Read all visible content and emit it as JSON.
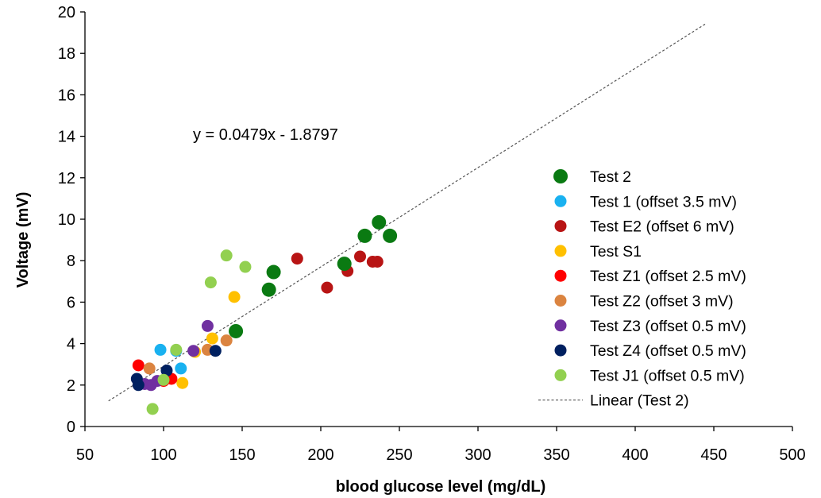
{
  "chart_data": {
    "type": "scatter",
    "xlabel": "blood glucose level (mg/dL)",
    "ylabel": "Voltage (mV)",
    "xlim": [
      50,
      500
    ],
    "ylim": [
      0,
      20
    ],
    "xticks": [
      50,
      100,
      150,
      200,
      250,
      300,
      350,
      400,
      450,
      500
    ],
    "yticks": [
      0,
      2,
      4,
      6,
      8,
      10,
      12,
      14,
      16,
      18,
      20
    ],
    "grid": false,
    "legend_position": "right",
    "annotation": "y = 0.0479x - 1.8797",
    "series": [
      {
        "name": "Test 2",
        "color": "#0a7a12",
        "marker": "large-circle",
        "points": [
          [
            146,
            4.6
          ],
          [
            167,
            6.6
          ],
          [
            170,
            7.45
          ],
          [
            215,
            7.85
          ],
          [
            228,
            9.2
          ],
          [
            237,
            9.85
          ],
          [
            244,
            9.2
          ]
        ]
      },
      {
        "name": "Test 1 (offset 3.5 mV)",
        "color": "#19b1f0",
        "marker": "circle",
        "points": [
          [
            98,
            3.7
          ],
          [
            108,
            3.65
          ],
          [
            111,
            2.8
          ]
        ]
      },
      {
        "name": "Test E2 (offset 6 mV)",
        "color": "#b81414",
        "marker": "circle",
        "points": [
          [
            185,
            8.1
          ],
          [
            204,
            6.7
          ],
          [
            217,
            7.5
          ],
          [
            225,
            8.2
          ],
          [
            233,
            7.95
          ],
          [
            236,
            7.95
          ]
        ]
      },
      {
        "name": "Test S1",
        "color": "#ffc000",
        "marker": "circle",
        "points": [
          [
            112,
            2.1
          ],
          [
            120,
            3.6
          ],
          [
            131,
            4.25
          ],
          [
            145,
            6.25
          ]
        ]
      },
      {
        "name": "Test Z1 (offset 2.5 mV)",
        "color": "#ff0000",
        "marker": "circle",
        "points": [
          [
            84,
            2.95
          ],
          [
            100,
            2.2
          ],
          [
            105,
            2.3
          ]
        ]
      },
      {
        "name": "Test Z2 (offset 3 mV)",
        "color": "#db8440",
        "marker": "circle",
        "points": [
          [
            91,
            2.8
          ],
          [
            128,
            3.7
          ],
          [
            140,
            4.15
          ]
        ]
      },
      {
        "name": "Test Z3 (offset 0.5 mV)",
        "color": "#7030a0",
        "marker": "circle",
        "points": [
          [
            88,
            2.05
          ],
          [
            92,
            2.0
          ],
          [
            96,
            2.2
          ],
          [
            119,
            3.65
          ],
          [
            128,
            4.85
          ]
        ]
      },
      {
        "name": "Test Z4 (offset 0.5 mV)",
        "color": "#002060",
        "marker": "circle",
        "points": [
          [
            83,
            2.3
          ],
          [
            84,
            2.0
          ],
          [
            102,
            2.7
          ],
          [
            133,
            3.65
          ]
        ]
      },
      {
        "name": "Test J1 (offset 0.5 mV)",
        "color": "#92d050",
        "marker": "circle",
        "points": [
          [
            93,
            0.85
          ],
          [
            100,
            2.25
          ],
          [
            108,
            3.7
          ],
          [
            130,
            6.95
          ],
          [
            140,
            8.25
          ],
          [
            152,
            7.7
          ]
        ]
      }
    ],
    "trendline": {
      "name": "Linear (Test 2)",
      "style": "dashed",
      "color": "#555555",
      "slope": 0.0479,
      "intercept": -1.8797,
      "x_range": [
        65,
        445
      ]
    }
  }
}
